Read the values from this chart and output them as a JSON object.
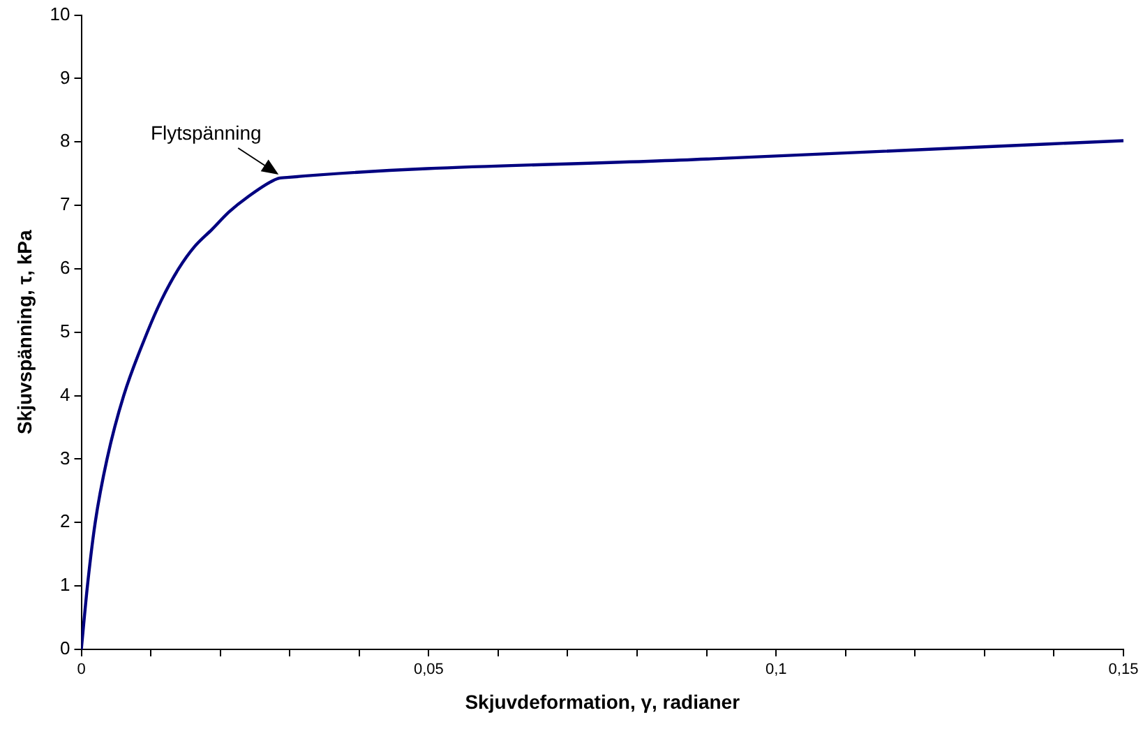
{
  "chart_data": {
    "type": "line",
    "xlabel": "Skjuvdeformation, γ, radianer",
    "ylabel": "Skjuvspänning, τ, kPa",
    "x": [
      0,
      0.00088,
      0.002,
      0.0037,
      0.0061,
      0.0095,
      0.0115,
      0.014,
      0.0163,
      0.0188,
      0.0213,
      0.0238,
      0.0282,
      0.0296,
      0.09,
      0.15
    ],
    "series": [
      {
        "color": "#000080",
        "values": [
          0,
          1.0,
          2.0,
          3.0,
          4.0,
          5.0,
          5.5,
          6.0,
          6.35,
          6.62,
          6.9,
          7.12,
          7.42,
          7.44,
          7.73,
          8.02
        ]
      }
    ],
    "xlim": [
      0,
      0.15
    ],
    "ylim": [
      0,
      10
    ],
    "xticks": [
      0,
      {
        "value": 0.01,
        "label": null
      },
      {
        "value": 0.02,
        "label": null
      },
      {
        "value": 0.03,
        "label": null
      },
      {
        "value": 0.04,
        "label": null
      },
      {
        "value": 0.05,
        "label": "0,05"
      },
      {
        "value": 0.06,
        "label": null
      },
      {
        "value": 0.07,
        "label": null
      },
      {
        "value": 0.08,
        "label": null
      },
      {
        "value": 0.09,
        "label": null
      },
      {
        "value": 0.1,
        "label": "0,1"
      },
      {
        "value": 0.11,
        "label": null
      },
      {
        "value": 0.12,
        "label": null
      },
      {
        "value": 0.13,
        "label": null
      },
      {
        "value": 0.14,
        "label": null
      },
      {
        "value": 0.15,
        "label": "0,15"
      }
    ],
    "yticks": [
      0,
      1,
      2,
      3,
      4,
      5,
      6,
      7,
      8,
      9,
      10
    ],
    "annotations": [
      {
        "text": "Flytspänning",
        "x": 0.029,
        "y": 7.42
      }
    ],
    "grid": false,
    "legend": false,
    "marker": "none",
    "line_style": "solid"
  }
}
